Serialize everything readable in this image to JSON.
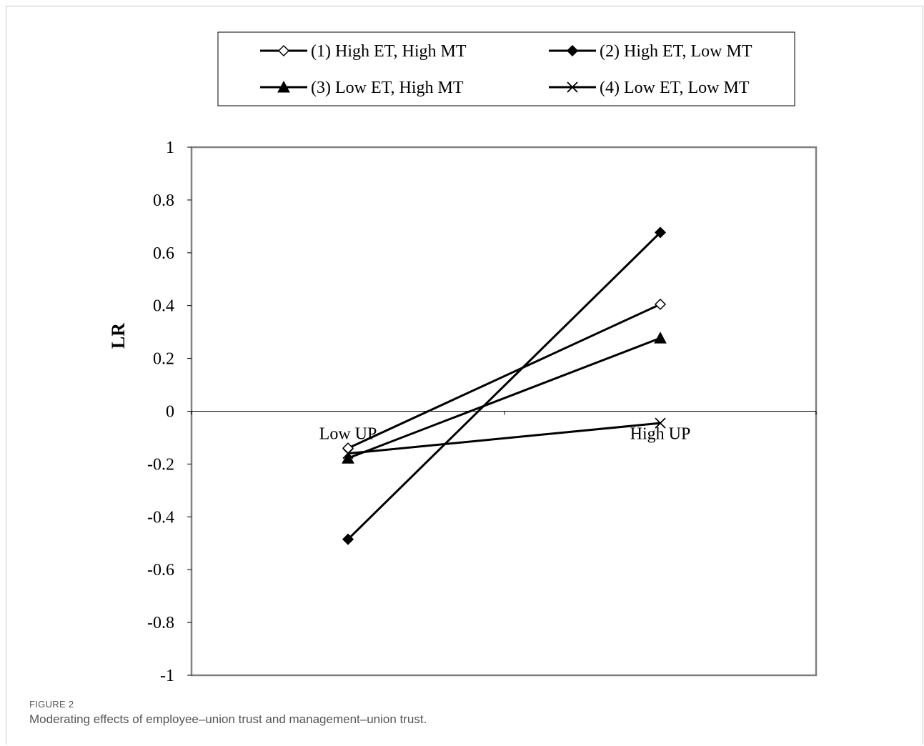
{
  "figure": {
    "label": "FIGURE 2",
    "caption": "Moderating effects of employee–union trust and management–union trust."
  },
  "chart_data": {
    "type": "line",
    "title": "",
    "xlabel": "",
    "ylabel": "LR",
    "categories": [
      "Low UP",
      "High UP"
    ],
    "ylim": [
      -1,
      1
    ],
    "yticks": [
      "1",
      "0.8",
      "0.6",
      "0.4",
      "0.2",
      "0",
      "-0.2",
      "-0.4",
      "-0.6",
      "-0.8",
      "-1"
    ],
    "ytick_values": [
      1,
      0.8,
      0.6,
      0.4,
      0.2,
      0,
      -0.2,
      -0.4,
      -0.6,
      -0.8,
      -1
    ],
    "grid": false,
    "legend_position": "top",
    "colors": {
      "line": "#000000",
      "axis": "#808080",
      "zero_line": "#000000"
    },
    "series": [
      {
        "name": "(1) High ET, High MT",
        "marker": "diamond-open",
        "values": [
          -0.14,
          0.405
        ]
      },
      {
        "name": "(2) High ET, Low MT",
        "marker": "diamond-filled",
        "values": [
          -0.485,
          0.677
        ]
      },
      {
        "name": "(3) Low ET, High MT",
        "marker": "triangle-filled",
        "values": [
          -0.178,
          0.277
        ]
      },
      {
        "name": "(4) Low ET, Low MT",
        "marker": "x",
        "values": [
          -0.16,
          -0.045
        ]
      }
    ]
  }
}
